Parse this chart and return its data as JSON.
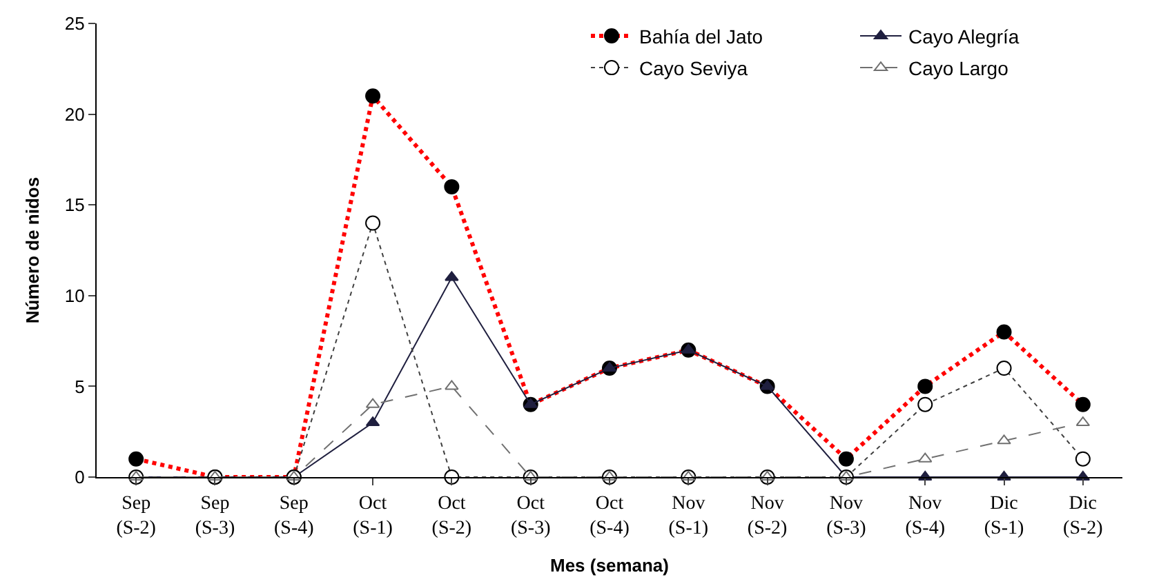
{
  "chart_data": {
    "type": "line",
    "xlabel": "Mes (semana)",
    "ylabel": "Número de nidos",
    "categories": [
      "Sep\n(S-2)",
      "Sep\n(S-3)",
      "Sep\n(S-4)",
      "Oct\n(S-1)",
      "Oct\n(S-2)",
      "Oct\n(S-3)",
      "Oct\n(S-4)",
      "Nov\n(S-1)",
      "Nov\n(S-2)",
      "Nov\n(S-3)",
      "Nov\n(S-4)",
      "Dic\n(S-1)",
      "Dic\n(S-2)"
    ],
    "series": [
      {
        "name": "Bahía del Jato",
        "color": "#ff0000",
        "line_style": "dotted",
        "marker": "circle",
        "values": [
          1,
          0,
          0,
          21,
          16,
          4,
          6,
          7,
          5,
          1,
          5,
          8,
          4
        ]
      },
      {
        "name": "Cayo Alegría",
        "color": "#1f1f3f",
        "line_style": "solid",
        "marker": "triangle",
        "values": [
          0,
          0,
          0,
          3,
          11,
          4,
          6,
          7,
          5,
          0,
          0,
          0,
          0
        ]
      },
      {
        "name": "Cayo Seviya",
        "color": "#404040",
        "line_style": "dotted",
        "marker": "circle",
        "values": [
          0,
          0,
          0,
          14,
          0,
          0,
          0,
          0,
          0,
          0,
          4,
          6,
          1
        ]
      },
      {
        "name": "Cayo Largo",
        "color": "#707070",
        "line_style": "dashed",
        "marker": "triangle",
        "values": [
          0,
          0,
          0,
          4,
          5,
          0,
          0,
          0,
          0,
          0,
          1,
          2,
          3
        ]
      }
    ],
    "ylim": [
      0,
      25
    ],
    "yticks": [
      0,
      5,
      10,
      15,
      20,
      25
    ],
    "legend": "top right"
  }
}
